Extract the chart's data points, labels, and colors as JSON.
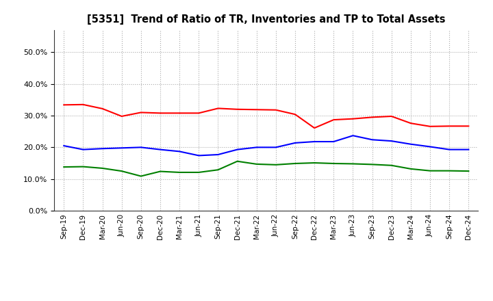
{
  "title": "[5351]  Trend of Ratio of TR, Inventories and TP to Total Assets",
  "x_labels": [
    "Sep-19",
    "Dec-19",
    "Mar-20",
    "Jun-20",
    "Sep-20",
    "Dec-20",
    "Mar-21",
    "Jun-21",
    "Sep-21",
    "Dec-21",
    "Mar-22",
    "Jun-22",
    "Sep-22",
    "Dec-22",
    "Mar-23",
    "Jun-23",
    "Sep-23",
    "Dec-23",
    "Mar-24",
    "Jun-24",
    "Sep-24",
    "Dec-24"
  ],
  "trade_receivables": [
    0.334,
    0.335,
    0.322,
    0.298,
    0.31,
    0.308,
    0.308,
    0.308,
    0.323,
    0.32,
    0.319,
    0.318,
    0.304,
    0.261,
    0.287,
    0.29,
    0.295,
    0.298,
    0.276,
    0.266,
    0.267,
    0.267
  ],
  "inventories": [
    0.205,
    0.193,
    0.196,
    0.198,
    0.2,
    0.193,
    0.187,
    0.174,
    0.177,
    0.193,
    0.2,
    0.2,
    0.214,
    0.218,
    0.218,
    0.237,
    0.224,
    0.22,
    0.21,
    0.202,
    0.193,
    0.193
  ],
  "trade_payables": [
    0.138,
    0.139,
    0.134,
    0.125,
    0.109,
    0.124,
    0.121,
    0.121,
    0.129,
    0.156,
    0.147,
    0.145,
    0.149,
    0.151,
    0.149,
    0.148,
    0.146,
    0.143,
    0.132,
    0.126,
    0.126,
    0.125
  ],
  "tr_color": "#ff0000",
  "inv_color": "#0000ff",
  "tp_color": "#008000",
  "ylim": [
    0.0,
    0.57
  ],
  "yticks": [
    0.0,
    0.1,
    0.2,
    0.3,
    0.4,
    0.5
  ],
  "background_color": "#ffffff",
  "grid_color": "#aaaaaa"
}
